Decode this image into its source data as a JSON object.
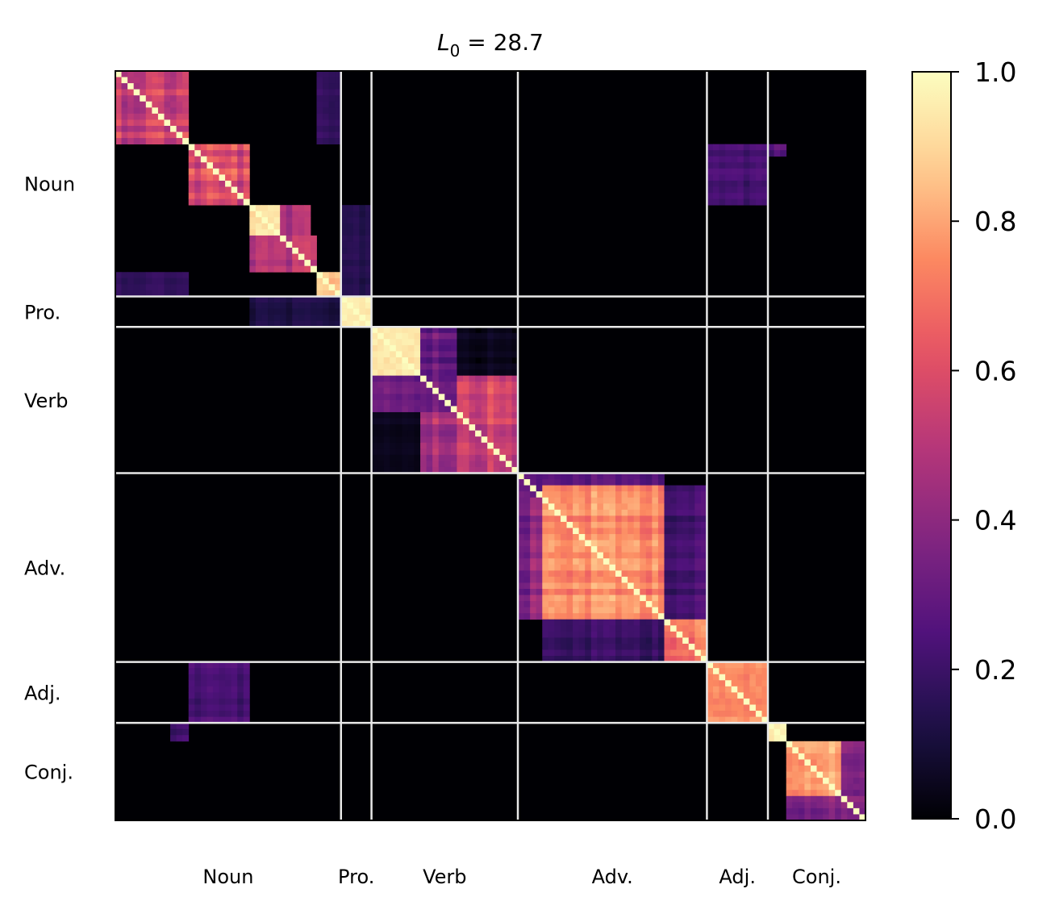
{
  "chart_data": {
    "type": "heatmap",
    "title": "L0 = 28.7",
    "title_parts": {
      "var": "L",
      "sub": "0",
      "rest": " = 28.7"
    },
    "xlabel": "",
    "ylabel": "",
    "colormap": "magma",
    "colormap_stops": [
      "#000004",
      "#1d1147",
      "#51127c",
      "#822681",
      "#b73779",
      "#e75263",
      "#fc8961",
      "#fecf92",
      "#fcfdbf"
    ],
    "colorbar": {
      "min": 0.0,
      "max": 1.0,
      "ticks": [
        "0.0",
        "0.2",
        "0.4",
        "0.6",
        "0.8",
        "1.0"
      ]
    },
    "n": 123,
    "groups": [
      {
        "label": "Noun",
        "start": 0,
        "end": 37
      },
      {
        "label": "Pro.",
        "start": 37,
        "end": 42
      },
      {
        "label": "Verb",
        "start": 42,
        "end": 66
      },
      {
        "label": "Adv.",
        "start": 66,
        "end": 97
      },
      {
        "label": "Adj.",
        "start": 97,
        "end": 107
      },
      {
        "label": "Conj.",
        "start": 107,
        "end": 123
      }
    ],
    "blocks": [
      {
        "r": [
          0,
          9
        ],
        "c": [
          0,
          9
        ],
        "v": 0.95,
        "j": 0.3
      },
      {
        "r": [
          0,
          12
        ],
        "c": [
          0,
          12
        ],
        "v": 0.72,
        "j": 0.45
      },
      {
        "r": [
          12,
          22
        ],
        "c": [
          12,
          22
        ],
        "v": 0.78,
        "j": 0.45
      },
      {
        "r": [
          22,
          27
        ],
        "c": [
          22,
          27
        ],
        "v": 0.97,
        "j": 0.1
      },
      {
        "r": [
          22,
          33
        ],
        "c": [
          27,
          32
        ],
        "v": 0.58,
        "j": 0.35
      },
      {
        "r": [
          27,
          33
        ],
        "c": [
          22,
          27
        ],
        "v": 0.58,
        "j": 0.35
      },
      {
        "r": [
          27,
          33
        ],
        "c": [
          27,
          33
        ],
        "v": 0.62,
        "j": 0.4
      },
      {
        "r": [
          33,
          37
        ],
        "c": [
          33,
          37
        ],
        "v": 0.95,
        "j": 0.15
      },
      {
        "r": [
          0,
          12
        ],
        "c": [
          33,
          37
        ],
        "v": 0.22,
        "j": 0.35
      },
      {
        "r": [
          33,
          37
        ],
        "c": [
          0,
          12
        ],
        "v": 0.22,
        "j": 0.35
      },
      {
        "r": [
          22,
          37
        ],
        "c": [
          37,
          42
        ],
        "v": 0.2,
        "j": 0.5
      },
      {
        "r": [
          37,
          42
        ],
        "c": [
          22,
          37
        ],
        "v": 0.16,
        "j": 0.6
      },
      {
        "r": [
          37,
          42
        ],
        "c": [
          37,
          42
        ],
        "v": 0.98,
        "j": 0.05
      },
      {
        "r": [
          42,
          50
        ],
        "c": [
          42,
          50
        ],
        "v": 0.97,
        "j": 0.05
      },
      {
        "r": [
          42,
          66
        ],
        "c": [
          50,
          56
        ],
        "v": 0.42,
        "j": 0.5
      },
      {
        "r": [
          50,
          56
        ],
        "c": [
          42,
          66
        ],
        "v": 0.42,
        "j": 0.5
      },
      {
        "r": [
          50,
          66
        ],
        "c": [
          56,
          66
        ],
        "v": 0.68,
        "j": 0.4
      },
      {
        "r": [
          56,
          66
        ],
        "c": [
          50,
          56
        ],
        "v": 0.6,
        "j": 0.45
      },
      {
        "r": [
          42,
          50
        ],
        "c": [
          56,
          66
        ],
        "v": 0.08,
        "j": 0.8
      },
      {
        "r": [
          56,
          66
        ],
        "c": [
          42,
          50
        ],
        "v": 0.08,
        "j": 0.8
      },
      {
        "r": [
          66,
          71
        ],
        "c": [
          66,
          90
        ],
        "v": 0.38,
        "j": 0.5
      },
      {
        "r": [
          66,
          90
        ],
        "c": [
          66,
          71
        ],
        "v": 0.38,
        "j": 0.5
      },
      {
        "r": [
          68,
          90
        ],
        "c": [
          70,
          90
        ],
        "v": 0.86,
        "j": 0.25
      },
      {
        "r": [
          70,
          90
        ],
        "c": [
          68,
          70
        ],
        "v": 0.55,
        "j": 0.45
      },
      {
        "r": [
          68,
          90
        ],
        "c": [
          90,
          97
        ],
        "v": 0.3,
        "j": 0.55
      },
      {
        "r": [
          90,
          97
        ],
        "c": [
          70,
          90
        ],
        "v": 0.26,
        "j": 0.55
      },
      {
        "r": [
          90,
          97
        ],
        "c": [
          90,
          97
        ],
        "v": 0.82,
        "j": 0.3
      },
      {
        "r": [
          97,
          107
        ],
        "c": [
          97,
          107
        ],
        "v": 0.8,
        "j": 0.12
      },
      {
        "r": [
          97,
          107
        ],
        "c": [
          12,
          22
        ],
        "v": 0.3,
        "j": 0.45
      },
      {
        "r": [
          12,
          22
        ],
        "c": [
          97,
          107
        ],
        "v": 0.3,
        "j": 0.45
      },
      {
        "r": [
          12,
          14
        ],
        "c": [
          107,
          110
        ],
        "v": 0.35,
        "j": 0.5
      },
      {
        "r": [
          107,
          110
        ],
        "c": [
          9,
          12
        ],
        "v": 0.3,
        "j": 0.5
      },
      {
        "r": [
          107,
          110
        ],
        "c": [
          107,
          110
        ],
        "v": 0.98,
        "j": 0.05
      },
      {
        "r": [
          110,
          123
        ],
        "c": [
          110,
          123
        ],
        "v": 0.9,
        "j": 0.2
      },
      {
        "r": [
          110,
          123
        ],
        "c": [
          119,
          123
        ],
        "v": 0.5,
        "j": 0.4
      },
      {
        "r": [
          119,
          123
        ],
        "c": [
          110,
          119
        ],
        "v": 0.45,
        "j": 0.4
      }
    ]
  }
}
